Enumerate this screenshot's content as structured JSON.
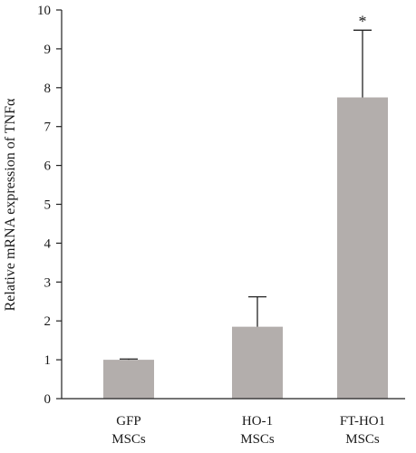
{
  "chart_data": {
    "type": "bar",
    "categories": [
      [
        "GFP",
        "MSCs"
      ],
      [
        "HO-1",
        "MSCs"
      ],
      [
        "FT-HO1",
        "MSCs"
      ]
    ],
    "values": [
      1.0,
      1.85,
      7.75
    ],
    "error_upper": [
      0.02,
      0.77,
      1.73
    ],
    "annotations": [
      "",
      "",
      "*"
    ],
    "title": "",
    "xlabel": "",
    "ylabel": "Relative mRNA expression of TNFα",
    "ylim": [
      0,
      10
    ],
    "yticks": [
      "0",
      "1",
      "2",
      "3",
      "4",
      "5",
      "6",
      "7",
      "8",
      "9",
      "10"
    ],
    "grid": false,
    "bar_color": "#b3aeac",
    "axis_color": "#222222"
  }
}
